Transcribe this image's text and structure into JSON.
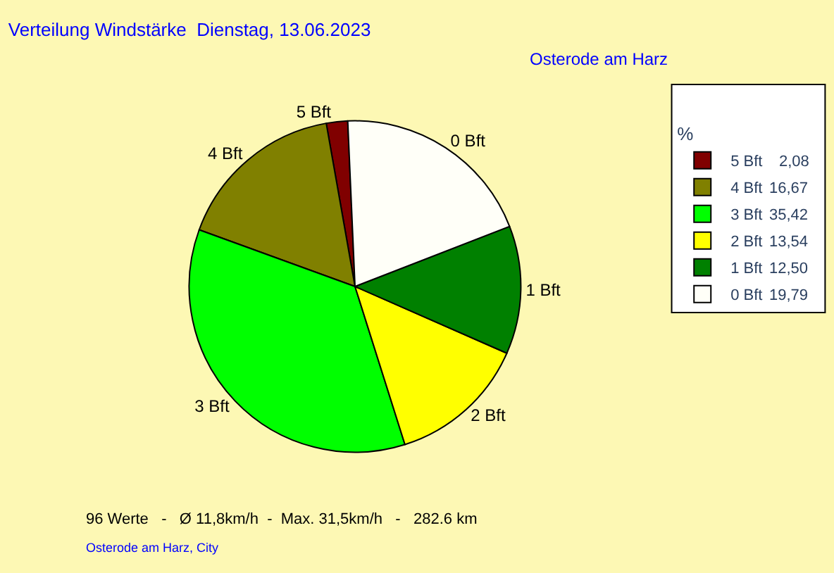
{
  "chart_data": {
    "type": "pie",
    "title": "Verteilung Windstärke  Dienstag, 13.06.2023",
    "subtitle": "Osterode am Harz",
    "legend_title": "%",
    "legend": "top right",
    "categories": [
      "5 Bft",
      "4 Bft",
      "3 Bft",
      "2 Bft",
      "1 Bft",
      "0 Bft"
    ],
    "values": [
      2.08,
      16.67,
      35.42,
      13.54,
      12.5,
      19.79
    ],
    "value_labels": [
      "2,08",
      "16,67",
      "35,42",
      "13,54",
      "12,50",
      "19,79"
    ],
    "colors": [
      "#800000",
      "#808000",
      "#00ff00",
      "#ffff00",
      "#008000",
      "#fffff8"
    ],
    "annotations": [
      "96 Werte   -   Ø 11,8km/h  -  Max. 31,5km/h   -   282.6 km",
      "Osterode am Harz, City"
    ]
  }
}
